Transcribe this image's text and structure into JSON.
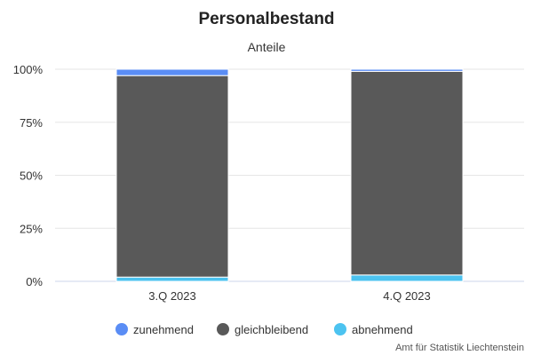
{
  "chart_data": {
    "type": "bar",
    "stacked": true,
    "title": "Personalbestand",
    "subtitle": "Anteile",
    "categories": [
      "3.Q 2023",
      "4.Q 2023"
    ],
    "ylim": [
      0,
      100
    ],
    "y_ticks": [
      "0%",
      "25%",
      "50%",
      "75%",
      "100%"
    ],
    "y_tick_values": [
      0,
      25,
      50,
      75,
      100
    ],
    "grid": true,
    "legend_position": "bottom",
    "series": [
      {
        "name": "zunehmend",
        "color": "#5a8df5",
        "values": [
          3,
          1
        ]
      },
      {
        "name": "gleichbleibend",
        "color": "#595959",
        "values": [
          95,
          96
        ]
      },
      {
        "name": "abnehmend",
        "color": "#4cc3f0",
        "values": [
          2,
          3
        ]
      }
    ]
  },
  "credit": "Amt für Statistik Liechtenstein"
}
